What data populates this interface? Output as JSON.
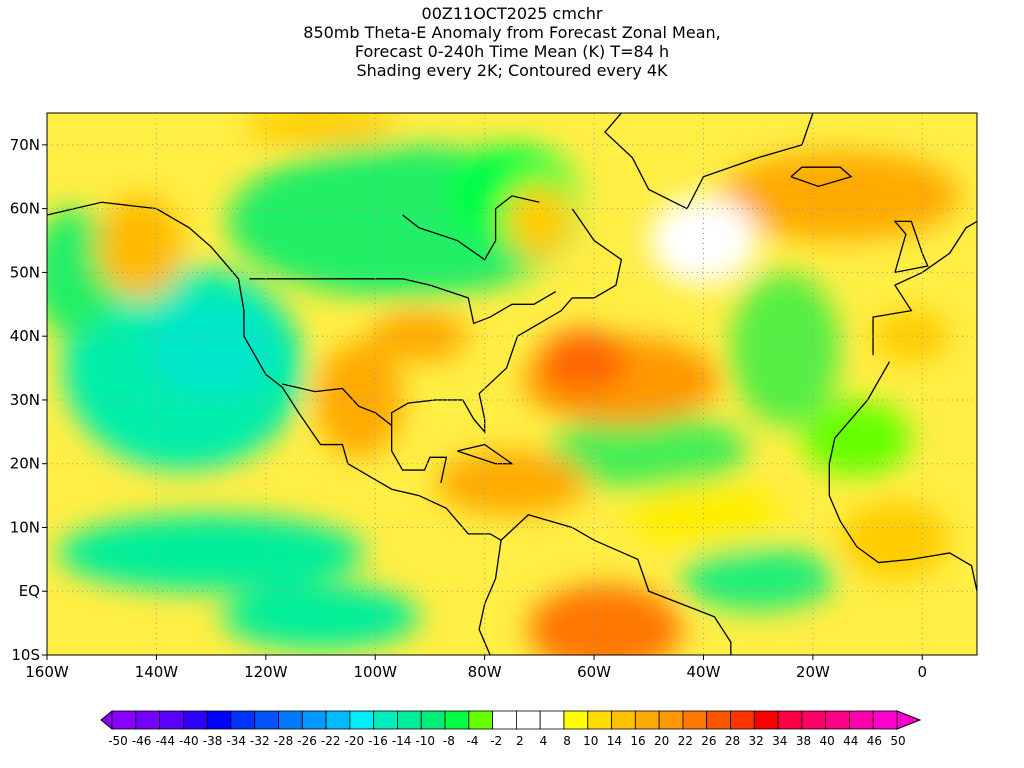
{
  "title": {
    "lines": [
      "00Z11OCT2025 cmchr",
      "850mb Theta-E Anomaly from Forecast Zonal Mean,",
      "Forecast 0-240h Time Mean (K) T=84 h",
      "Shading every 2K; Contoured every 4K"
    ]
  },
  "map": {
    "lon_range": [
      -160,
      10
    ],
    "lat_range": [
      -10,
      75
    ],
    "lat_ticks": [
      {
        "value": 70,
        "label": "70N"
      },
      {
        "value": 60,
        "label": "60N"
      },
      {
        "value": 50,
        "label": "50N"
      },
      {
        "value": 40,
        "label": "40N"
      },
      {
        "value": 30,
        "label": "30N"
      },
      {
        "value": 20,
        "label": "20N"
      },
      {
        "value": 10,
        "label": "10N"
      },
      {
        "value": 0,
        "label": "EQ"
      },
      {
        "value": -10,
        "label": "10S"
      }
    ],
    "lon_ticks": [
      {
        "value": -160,
        "label": "160W"
      },
      {
        "value": -140,
        "label": "140W"
      },
      {
        "value": -120,
        "label": "120W"
      },
      {
        "value": -100,
        "label": "100W"
      },
      {
        "value": -80,
        "label": "80W"
      },
      {
        "value": -60,
        "label": "60W"
      },
      {
        "value": -40,
        "label": "40W"
      },
      {
        "value": -20,
        "label": "20W"
      },
      {
        "value": 0,
        "label": "0"
      }
    ],
    "anomaly_regions": [
      {
        "name": "canada-cold",
        "lon": -95,
        "lat": 58,
        "rlon": 32,
        "rlat": 12,
        "color": "#22ee66"
      },
      {
        "name": "hudson-cold",
        "lon": -75,
        "lat": 62,
        "rlon": 12,
        "rlat": 8,
        "color": "#00ff44"
      },
      {
        "name": "pacific-cold",
        "lon": -135,
        "lat": 35,
        "rlon": 22,
        "rlat": 16,
        "color": "#00eeaa"
      },
      {
        "name": "pacific-cold-core",
        "lon": -130,
        "lat": 38,
        "rlon": 12,
        "rlat": 8,
        "color": "#00e6c8"
      },
      {
        "name": "tropical-pacific-cold",
        "lon": -130,
        "lat": 6,
        "rlon": 28,
        "rlat": 6,
        "color": "#00ee99"
      },
      {
        "name": "nw-pacific-cold",
        "lon": -155,
        "lat": 50,
        "rlon": 8,
        "rlat": 10,
        "color": "#22ee66"
      },
      {
        "name": "atlantic-cold",
        "lon": -50,
        "lat": 22,
        "rlon": 18,
        "rlat": 6,
        "color": "#44ee55"
      },
      {
        "name": "midatlantic-cold",
        "lon": -25,
        "lat": 38,
        "rlon": 10,
        "rlat": 12,
        "color": "#55ee44"
      },
      {
        "name": "west-africa-cold",
        "lon": -12,
        "lat": 24,
        "rlon": 10,
        "rlat": 6,
        "color": "#66ff00"
      },
      {
        "name": "s-atlantic-cold",
        "lon": -30,
        "lat": 2,
        "rlon": 14,
        "rlat": 5,
        "color": "#22ee77"
      },
      {
        "name": "s-pacific-cold",
        "lon": -110,
        "lat": -4,
        "rlon": 18,
        "rlat": 5,
        "color": "#00ee99"
      },
      {
        "name": "gulf-stream-warm",
        "lon": -55,
        "lat": 33,
        "rlon": 18,
        "rlat": 7,
        "color": "#ff9900"
      },
      {
        "name": "atlantic-warm-core",
        "lon": -62,
        "lat": 36,
        "rlon": 8,
        "rlat": 5,
        "color": "#ff6600"
      },
      {
        "name": "caribbean-warm",
        "lon": -75,
        "lat": 17,
        "rlon": 14,
        "rlat": 5,
        "color": "#ffaa00"
      },
      {
        "name": "mexico-warm",
        "lon": -103,
        "lat": 30,
        "rlon": 8,
        "rlat": 9,
        "color": "#ffaa00"
      },
      {
        "name": "us-plains-warm",
        "lon": -92,
        "lat": 40,
        "rlon": 9,
        "rlat": 4,
        "color": "#ffaa00"
      },
      {
        "name": "south-america-warm",
        "lon": -58,
        "lat": -6,
        "rlon": 14,
        "rlat": 7,
        "color": "#ff7700"
      },
      {
        "name": "ne-atlantic-warm",
        "lon": -15,
        "lat": 62,
        "rlon": 22,
        "rlat": 7,
        "color": "#ffaa00"
      },
      {
        "name": "alaska-warm",
        "lon": -143,
        "lat": 54,
        "rlon": 8,
        "rlat": 8,
        "color": "#ffbb00"
      },
      {
        "name": "greenland-warm",
        "lon": -70,
        "lat": 58,
        "rlon": 6,
        "rlat": 6,
        "color": "#ffcc00"
      },
      {
        "name": "arctic-warm",
        "lon": -110,
        "lat": 73,
        "rlon": 14,
        "rlat": 3,
        "color": "#ffcc00"
      },
      {
        "name": "africa-warm",
        "lon": -5,
        "lat": 8,
        "rlon": 10,
        "rlat": 6,
        "color": "#ffcc00"
      },
      {
        "name": "iberia-warm",
        "lon": -2,
        "lat": 40,
        "rlon": 7,
        "rlat": 4,
        "color": "#ffcc00"
      },
      {
        "name": "ne-atlantic-neutral",
        "lon": -40,
        "lat": 55,
        "rlon": 10,
        "rlat": 7,
        "color": "#ffffff"
      },
      {
        "name": "tropical-atlantic-yellow",
        "lon": -40,
        "lat": 12,
        "rlon": 14,
        "rlat": 5,
        "color": "#ffee00"
      }
    ]
  },
  "colorbar": {
    "colors": [
      "#8a00ff",
      "#7400ff",
      "#5a00ff",
      "#3000ff",
      "#0000ff",
      "#0033ff",
      "#0055ff",
      "#0077ff",
      "#0099ff",
      "#00bbff",
      "#00eeff",
      "#00eebb",
      "#00ee99",
      "#00ee77",
      "#00ff44",
      "#66ff00",
      "#ffffff",
      "#ffffff",
      "#ffffff",
      "#ffff00",
      "#ffdd00",
      "#ffc000",
      "#ffaa00",
      "#ff9900",
      "#ff7700",
      "#ff5500",
      "#ff3300",
      "#ff0000",
      "#ff0044",
      "#ff0066",
      "#ff0088",
      "#ff00aa",
      "#ff00cc"
    ],
    "labels": [
      "-50",
      "-46",
      "-44",
      "-40",
      "-38",
      "-34",
      "-32",
      "-28",
      "-26",
      "-22",
      "-20",
      "-16",
      "-14",
      "-10",
      "-8",
      "-4",
      "-2",
      "2",
      "4",
      "8",
      "10",
      "14",
      "16",
      "20",
      "22",
      "26",
      "28",
      "32",
      "34",
      "38",
      "40",
      "44",
      "46",
      "50"
    ]
  }
}
